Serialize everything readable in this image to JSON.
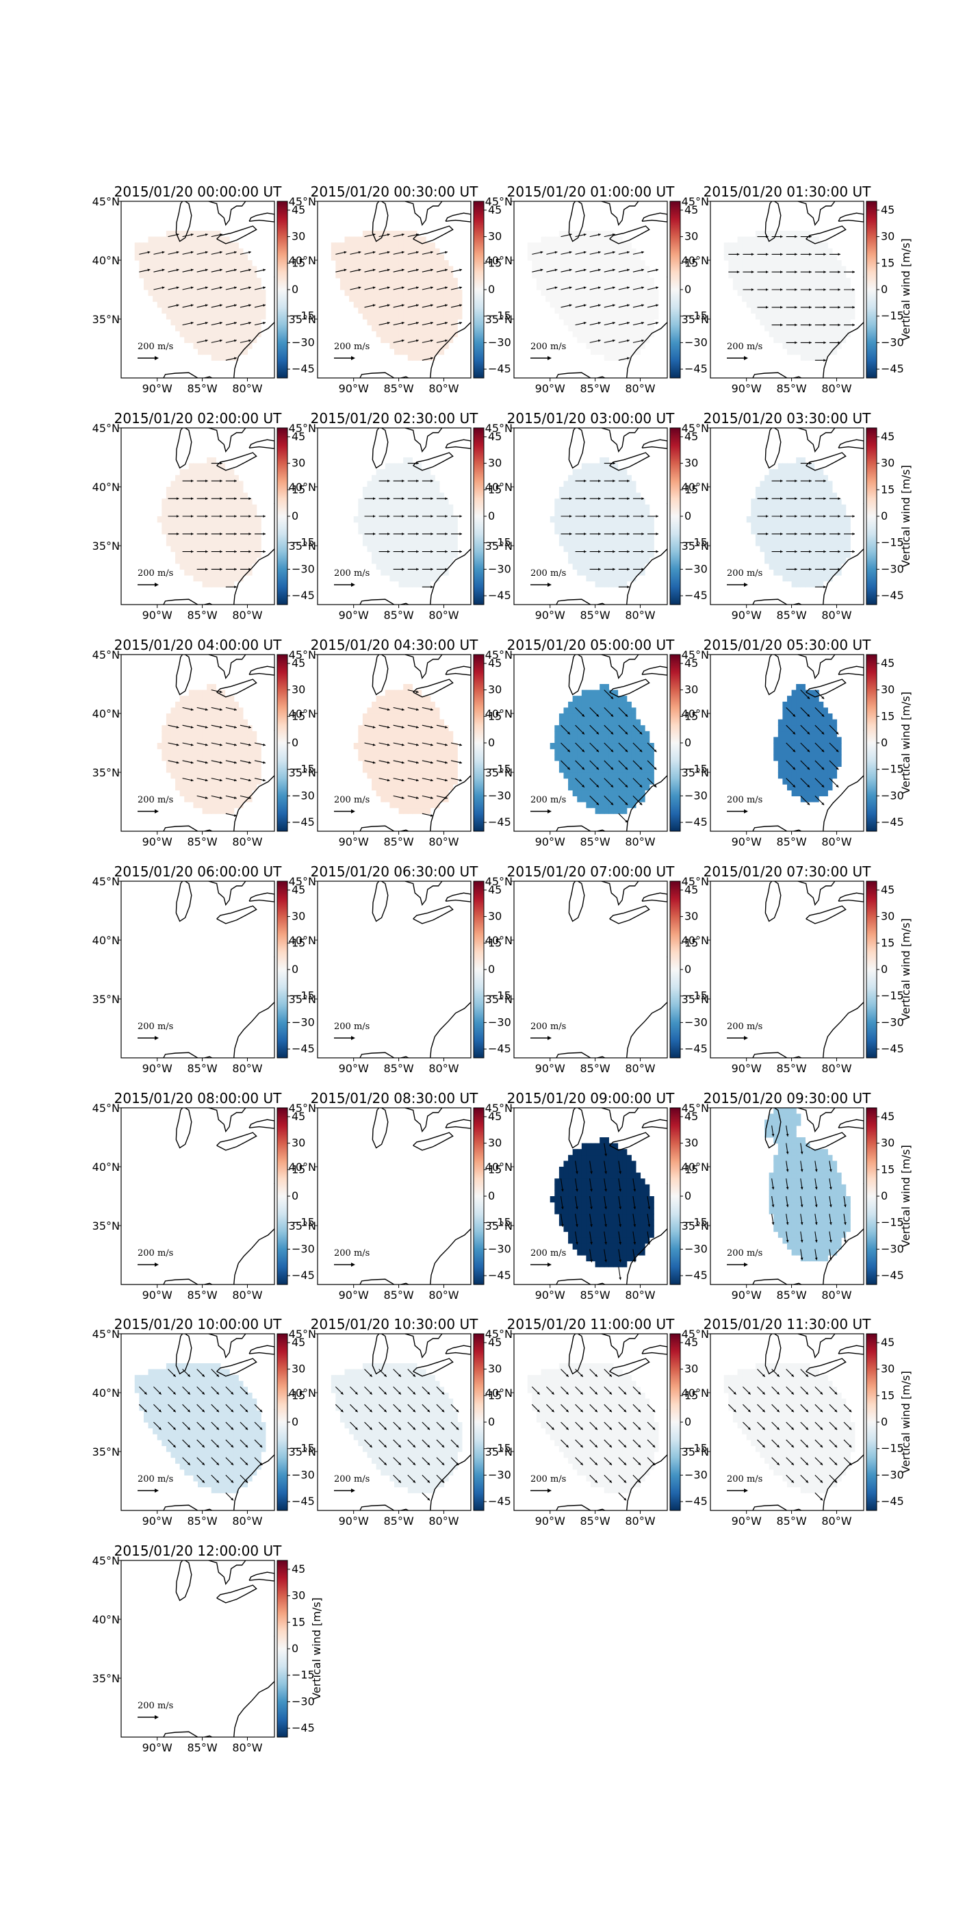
{
  "figure": {
    "colorbar_label": "Vertical wind [m/s]",
    "arrow_scale_label": "200 m/s",
    "x_ticks": [
      "90°W",
      "85°W",
      "80°W"
    ],
    "y_ticks": [
      "45°N",
      "40°N",
      "35°N"
    ],
    "colorbar_ticks": [
      "45",
      "30",
      "15",
      "0",
      "−15",
      "−30",
      "−45"
    ]
  },
  "chart_data": {
    "type": "heatmap",
    "colormap": "RdBu_r",
    "vmin": -50,
    "vmax": 50,
    "xlim": [
      -94,
      -77
    ],
    "ylim": [
      30,
      45
    ],
    "quantity": "Vertical wind [m/s]",
    "panels": [
      {
        "title": "2015/01/20 00:00:00 UT",
        "value": 4,
        "region": "southeast-large",
        "arrows": true,
        "arrow_dir": "east-northeast"
      },
      {
        "title": "2015/01/20 00:30:00 UT",
        "value": 5,
        "region": "southeast-large",
        "arrows": true,
        "arrow_dir": "east-northeast"
      },
      {
        "title": "2015/01/20 01:00:00 UT",
        "value": 0,
        "region": "southeast-large",
        "arrows": true,
        "arrow_dir": "east-northeast"
      },
      {
        "title": "2015/01/20 01:30:00 UT",
        "value": -1,
        "region": "southeast-large",
        "arrows": true,
        "arrow_dir": "east"
      },
      {
        "title": "2015/01/20 02:00:00 UT",
        "value": 4,
        "region": "southeast-medium",
        "arrows": true,
        "arrow_dir": "east"
      },
      {
        "title": "2015/01/20 02:30:00 UT",
        "value": -3,
        "region": "southeast-medium",
        "arrows": true,
        "arrow_dir": "east"
      },
      {
        "title": "2015/01/20 03:00:00 UT",
        "value": -5,
        "region": "southeast-medium",
        "arrows": true,
        "arrow_dir": "east"
      },
      {
        "title": "2015/01/20 03:30:00 UT",
        "value": -6,
        "region": "southeast-medium",
        "arrows": true,
        "arrow_dir": "east"
      },
      {
        "title": "2015/01/20 04:00:00 UT",
        "value": 5,
        "region": "southeast-medium",
        "arrows": true,
        "arrow_dir": "east-southeast"
      },
      {
        "title": "2015/01/20 04:30:00 UT",
        "value": 6,
        "region": "southeast-medium",
        "arrows": true,
        "arrow_dir": "east-southeast"
      },
      {
        "title": "2015/01/20 05:00:00 UT",
        "value": -30,
        "region": "southeast-medium",
        "arrows": true,
        "arrow_dir": "southeast"
      },
      {
        "title": "2015/01/20 05:30:00 UT",
        "value": -35,
        "region": "southeast-small",
        "arrows": true,
        "arrow_dir": "southeast"
      },
      {
        "title": "2015/01/20 06:00:00 UT",
        "value": null,
        "region": "none",
        "arrows": false
      },
      {
        "title": "2015/01/20 06:30:00 UT",
        "value": null,
        "region": "none",
        "arrows": false
      },
      {
        "title": "2015/01/20 07:00:00 UT",
        "value": null,
        "region": "none",
        "arrows": false
      },
      {
        "title": "2015/01/20 07:30:00 UT",
        "value": null,
        "region": "none",
        "arrows": false
      },
      {
        "title": "2015/01/20 08:00:00 UT",
        "value": null,
        "region": "none",
        "arrows": false
      },
      {
        "title": "2015/01/20 08:30:00 UT",
        "value": null,
        "region": "none",
        "arrows": false
      },
      {
        "title": "2015/01/20 09:00:00 UT",
        "value": -50,
        "region": "southeast-medium",
        "arrows": true,
        "arrow_dir": "south"
      },
      {
        "title": "2015/01/20 09:30:00 UT",
        "value": -18,
        "region": "southeast-lobed",
        "arrows": true,
        "arrow_dir": "south"
      },
      {
        "title": "2015/01/20 10:00:00 UT",
        "value": -10,
        "region": "southeast-large",
        "arrows": true,
        "arrow_dir": "southeast"
      },
      {
        "title": "2015/01/20 10:30:00 UT",
        "value": -4,
        "region": "southeast-large",
        "arrows": true,
        "arrow_dir": "southeast"
      },
      {
        "title": "2015/01/20 11:00:00 UT",
        "value": -1,
        "region": "southeast-large",
        "arrows": true,
        "arrow_dir": "southeast"
      },
      {
        "title": "2015/01/20 11:30:00 UT",
        "value": -1,
        "region": "southeast-large",
        "arrows": true,
        "arrow_dir": "southeast"
      },
      {
        "title": "2015/01/20 12:00:00 UT",
        "value": null,
        "region": "none",
        "arrows": false
      }
    ]
  }
}
